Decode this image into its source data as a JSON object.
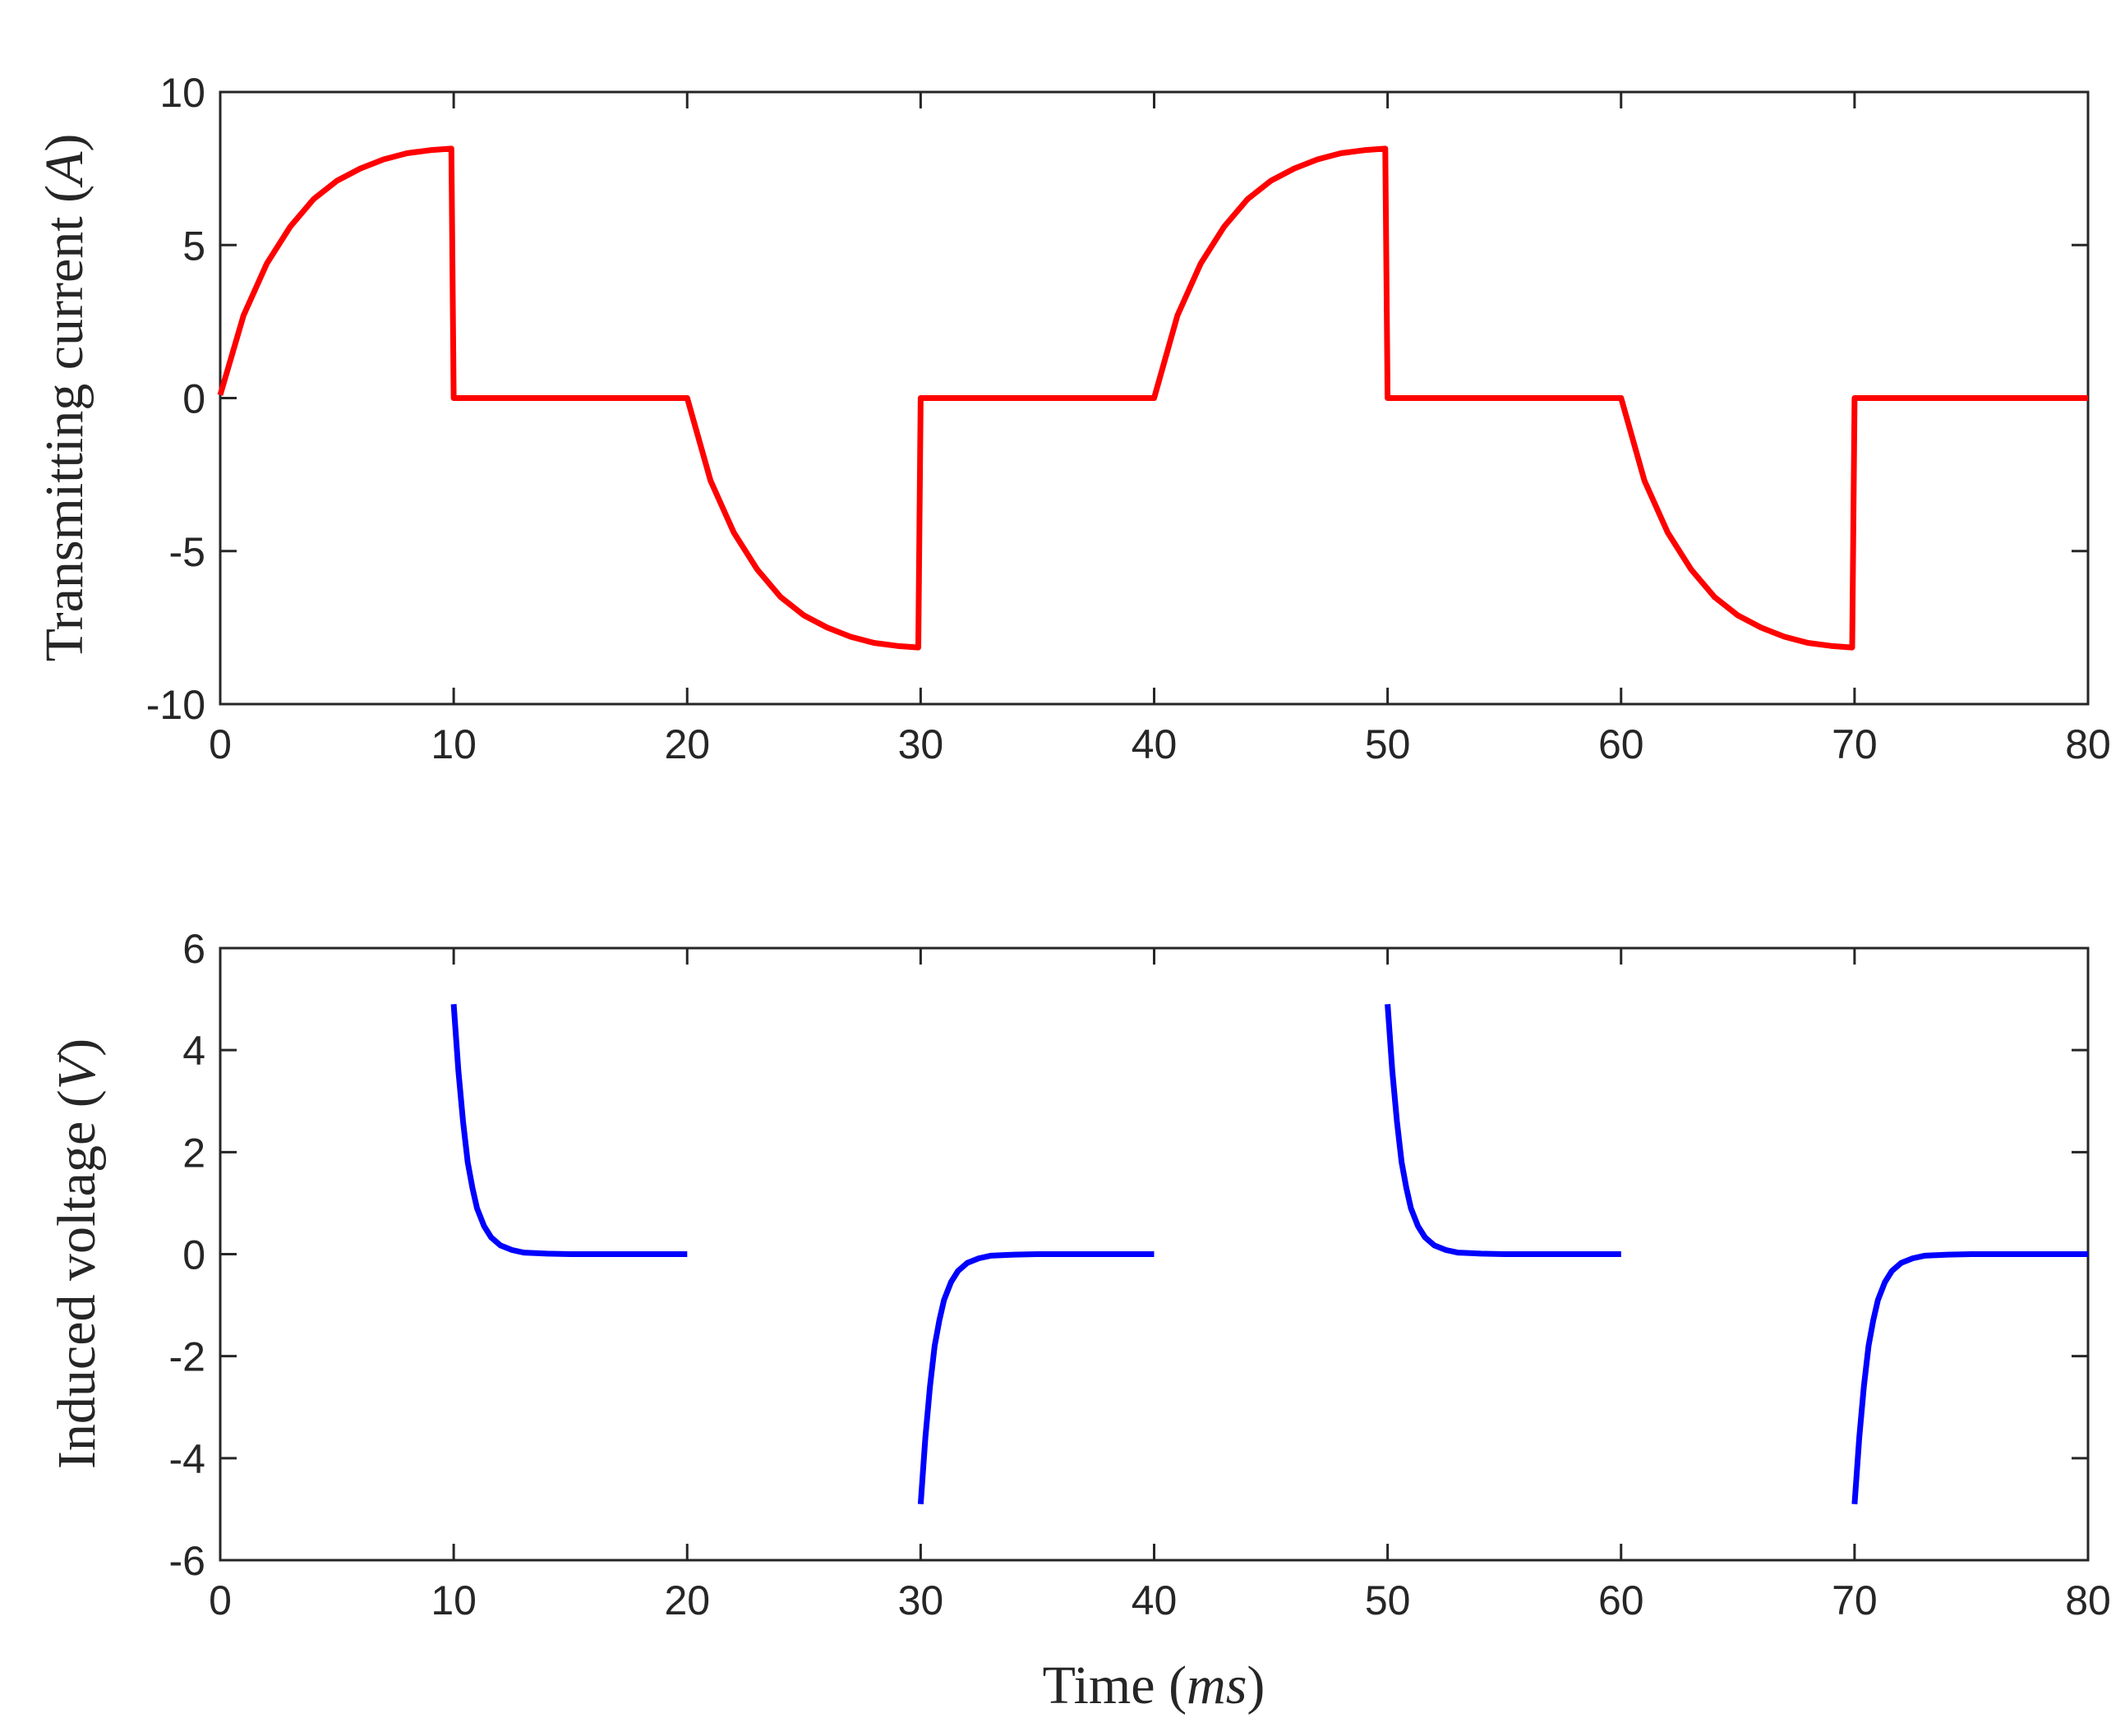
{
  "chart_data": [
    {
      "type": "line",
      "id": "current",
      "ylabel_text": "Transmitting current ",
      "ylabel_unit": "A",
      "xlabel_text": "",
      "xlim": [
        0,
        80
      ],
      "ylim": [
        -10,
        10
      ],
      "xticks": [
        0,
        10,
        20,
        30,
        40,
        50,
        60,
        70,
        80
      ],
      "xtick_labels": [
        "0",
        "10",
        "20",
        "30",
        "40",
        "50",
        "60",
        "70",
        "80"
      ],
      "yticks": [
        10,
        5,
        0,
        -5,
        -10
      ],
      "ytick_labels": [
        "10",
        "5",
        "0",
        "-5",
        "-10"
      ],
      "grid": false,
      "series": [
        {
          "name": "Transmitting current",
          "color": "#ff0000",
          "x": [
            0,
            1,
            2,
            3,
            4,
            5,
            6,
            7,
            8,
            9,
            9.9,
            10,
            11,
            12,
            13,
            14,
            15,
            16,
            17,
            18,
            19,
            20,
            21,
            22,
            23,
            24,
            25,
            26,
            27,
            28,
            29,
            29.9,
            30,
            31,
            32,
            33,
            34,
            35,
            36,
            37,
            38,
            39,
            40,
            41,
            42,
            43,
            44,
            45,
            46,
            47,
            48,
            49,
            49.9,
            50,
            51,
            52,
            53,
            54,
            55,
            56,
            57,
            58,
            59,
            60,
            61,
            62,
            63,
            64,
            65,
            66,
            67,
            68,
            69,
            69.9,
            70,
            71,
            72,
            73,
            74,
            75,
            76,
            77,
            78,
            79,
            80
          ],
          "y": [
            0.1,
            2.7,
            4.4,
            5.6,
            6.5,
            7.1,
            7.5,
            7.8,
            8.0,
            8.1,
            8.15,
            0,
            0,
            0,
            0,
            0,
            0,
            0,
            0,
            0,
            0,
            0,
            -2.7,
            -4.4,
            -5.6,
            -6.5,
            -7.1,
            -7.5,
            -7.8,
            -8.0,
            -8.1,
            -8.15,
            0,
            0,
            0,
            0,
            0,
            0,
            0,
            0,
            0,
            0,
            0,
            2.7,
            4.4,
            5.6,
            6.5,
            7.1,
            7.5,
            7.8,
            8.0,
            8.1,
            8.15,
            0,
            0,
            0,
            0,
            0,
            0,
            0,
            0,
            0,
            0,
            0,
            -2.7,
            -4.4,
            -5.6,
            -6.5,
            -7.1,
            -7.5,
            -7.8,
            -8.0,
            -8.1,
            -8.15,
            0,
            0,
            0,
            0,
            0,
            0,
            0,
            0,
            0,
            0,
            0
          ]
        }
      ]
    },
    {
      "type": "line",
      "id": "voltage",
      "ylabel_text": "Induced voltage ",
      "ylabel_unit": "V",
      "xlabel_text": "Time ",
      "xlabel_unit": "ms",
      "xlim": [
        0,
        80
      ],
      "ylim": [
        -6,
        6
      ],
      "xticks": [
        0,
        10,
        20,
        30,
        40,
        50,
        60,
        70,
        80
      ],
      "xtick_labels": [
        "0",
        "10",
        "20",
        "30",
        "40",
        "50",
        "60",
        "70",
        "80"
      ],
      "yticks": [
        6,
        4,
        2,
        0,
        -2,
        -4,
        -6
      ],
      "ytick_labels": [
        "6",
        "4",
        "2",
        "0",
        "-2",
        "-4",
        "-6"
      ],
      "grid": false,
      "series": [
        {
          "name": "Induced voltage",
          "color": "#0000ff",
          "segments": [
            {
              "x": [
                10,
                10.2,
                10.4,
                10.6,
                10.8,
                11,
                11.3,
                11.6,
                12,
                12.5,
                13,
                14,
                15,
                16,
                17,
                18,
                19,
                20
              ],
              "y": [
                4.9,
                3.6,
                2.6,
                1.8,
                1.3,
                0.9,
                0.55,
                0.33,
                0.17,
                0.08,
                0.03,
                0.01,
                0,
                0,
                0,
                0,
                0,
                0
              ]
            },
            {
              "x": [
                30,
                30.2,
                30.4,
                30.6,
                30.8,
                31,
                31.3,
                31.6,
                32,
                32.5,
                33,
                34,
                35,
                36,
                37,
                38,
                39,
                40
              ],
              "y": [
                -4.9,
                -3.6,
                -2.6,
                -1.8,
                -1.3,
                -0.9,
                -0.55,
                -0.33,
                -0.17,
                -0.08,
                -0.03,
                -0.01,
                0,
                0,
                0,
                0,
                0,
                0
              ]
            },
            {
              "x": [
                50,
                50.2,
                50.4,
                50.6,
                50.8,
                51,
                51.3,
                51.6,
                52,
                52.5,
                53,
                54,
                55,
                56,
                57,
                58,
                59,
                60
              ],
              "y": [
                4.9,
                3.6,
                2.6,
                1.8,
                1.3,
                0.9,
                0.55,
                0.33,
                0.17,
                0.08,
                0.03,
                0.01,
                0,
                0,
                0,
                0,
                0,
                0
              ]
            },
            {
              "x": [
                70,
                70.2,
                70.4,
                70.6,
                70.8,
                71,
                71.3,
                71.6,
                72,
                72.5,
                73,
                74,
                75,
                76,
                77,
                78,
                79,
                80
              ],
              "y": [
                -4.9,
                -3.6,
                -2.6,
                -1.8,
                -1.3,
                -0.9,
                -0.55,
                -0.33,
                -0.17,
                -0.08,
                -0.03,
                -0.01,
                0,
                0,
                0,
                0,
                0,
                0
              ]
            }
          ]
        }
      ]
    }
  ]
}
